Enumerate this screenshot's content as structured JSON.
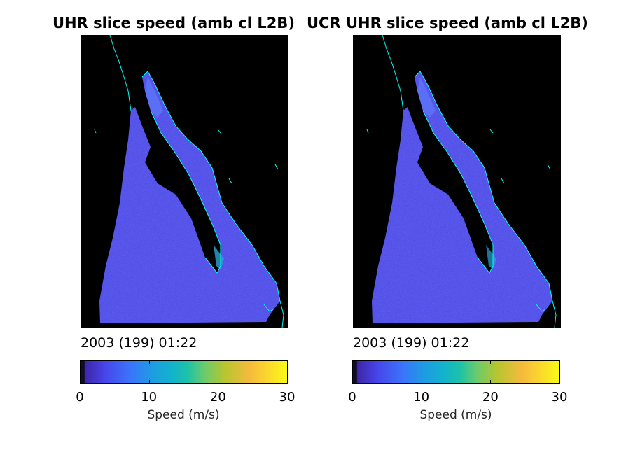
{
  "chart_data": [
    {
      "type": "heatmap",
      "title": "UHR slice speed (amb cl L2B)",
      "timestamp": "2003 (199) 01:22",
      "colorbar": {
        "label": "Speed (m/s)",
        "range": [
          0,
          30
        ],
        "ticks": [
          "0",
          "10",
          "20",
          "30"
        ]
      }
    },
    {
      "type": "heatmap",
      "title": "UCR UHR slice speed (amb cl L2B)",
      "timestamp": "2003 (199) 01:22",
      "colorbar": {
        "label": "Speed (m/s)",
        "range": [
          0,
          30
        ],
        "ticks": [
          "0",
          "10",
          "20",
          "30"
        ]
      }
    }
  ],
  "colors": {
    "background": "#000000",
    "land_outline": "#00ffff",
    "low_speed": "#3e26a8",
    "mid_speed": "#12b3cb",
    "high_speed": "#f9fb15"
  }
}
